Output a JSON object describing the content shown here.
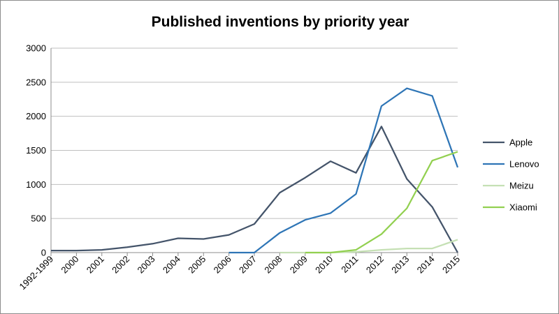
{
  "chart_data": {
    "type": "line",
    "title": "Published  inventions  by  priority  year",
    "xlabel": "",
    "ylabel": "",
    "categories": [
      "1992-1999",
      "2000",
      "2001",
      "2002",
      "2003",
      "2004",
      "2005",
      "2006",
      "2007",
      "2008",
      "2009",
      "2010",
      "2011",
      "2012",
      "2013",
      "2014",
      "2015"
    ],
    "ylim": [
      0,
      3000
    ],
    "yticks": [
      "0",
      "500",
      "1000",
      "1500",
      "2000",
      "2500",
      "3000"
    ],
    "grid": true,
    "legend_position": "right",
    "series": [
      {
        "name": "Apple",
        "color": "#44546a",
        "values": [
          30,
          30,
          40,
          80,
          130,
          210,
          200,
          260,
          420,
          880,
          1100,
          1340,
          1170,
          1850,
          1080,
          670,
          0
        ]
      },
      {
        "name": "Lenovo",
        "color": "#2e75b6",
        "values": [
          null,
          null,
          null,
          null,
          null,
          null,
          null,
          0,
          0,
          290,
          480,
          580,
          860,
          2150,
          2410,
          2300,
          1250
        ]
      },
      {
        "name": "Meizu",
        "color": "#c5e0b4",
        "values": [
          null,
          null,
          null,
          null,
          null,
          null,
          null,
          null,
          null,
          0,
          0,
          0,
          10,
          40,
          60,
          60,
          190
        ]
      },
      {
        "name": "Xiaomi",
        "color": "#92d050",
        "values": [
          null,
          null,
          null,
          null,
          null,
          null,
          null,
          null,
          null,
          null,
          0,
          0,
          40,
          270,
          650,
          1350,
          1480
        ]
      }
    ]
  }
}
